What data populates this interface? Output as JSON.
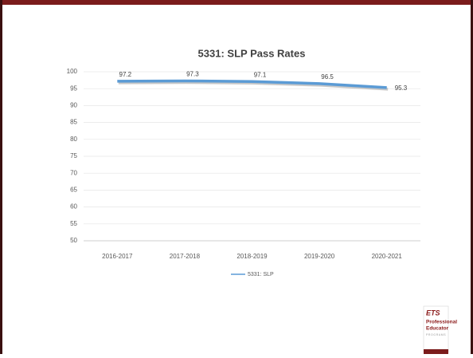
{
  "chart_data": {
    "type": "line",
    "title": "5331: SLP Pass Rates",
    "categories": [
      "2016-2017",
      "2017-2018",
      "2018-2019",
      "2019-2020",
      "2020-2021"
    ],
    "series": [
      {
        "name": "5331: SLP",
        "color": "#5b9bd5",
        "values": [
          97.2,
          97.3,
          97.1,
          96.5,
          95.3
        ]
      }
    ],
    "ylim": [
      50,
      100
    ],
    "yticks": [
      50,
      55,
      60,
      65,
      70,
      75,
      80,
      85,
      90,
      95,
      100
    ],
    "grid": true,
    "legend": "bottom"
  },
  "logo": {
    "brand": "ETS",
    "lines": [
      "Professional",
      "Educator"
    ],
    "tagline": "PROGRAMS"
  }
}
